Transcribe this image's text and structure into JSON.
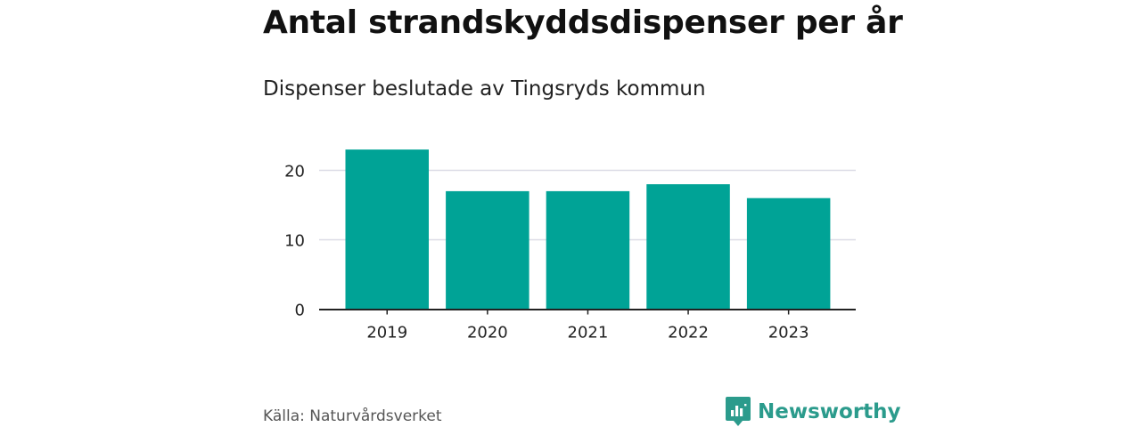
{
  "header": {
    "title": "Antal strandskyddsdispenser per år",
    "subtitle": "Dispenser beslutade av Tingsryds kommun"
  },
  "footer": {
    "source": "Källa: Naturvårdsverket",
    "brand": "Newsworthy"
  },
  "colors": {
    "bar": "#00a396",
    "grid": "#dcdce6",
    "axis": "#222222",
    "brand": "#2b9b8c"
  },
  "chart_data": {
    "type": "bar",
    "title": "Antal strandskyddsdispenser per år",
    "subtitle": "Dispenser beslutade av Tingsryds kommun",
    "categories": [
      "2019",
      "2020",
      "2021",
      "2022",
      "2023"
    ],
    "values": [
      23,
      17,
      17,
      18,
      16
    ],
    "ylim": [
      0,
      25
    ],
    "yticks": [
      0,
      10,
      20
    ],
    "xlabel": "",
    "ylabel": "",
    "grid": true,
    "legend": "none"
  }
}
